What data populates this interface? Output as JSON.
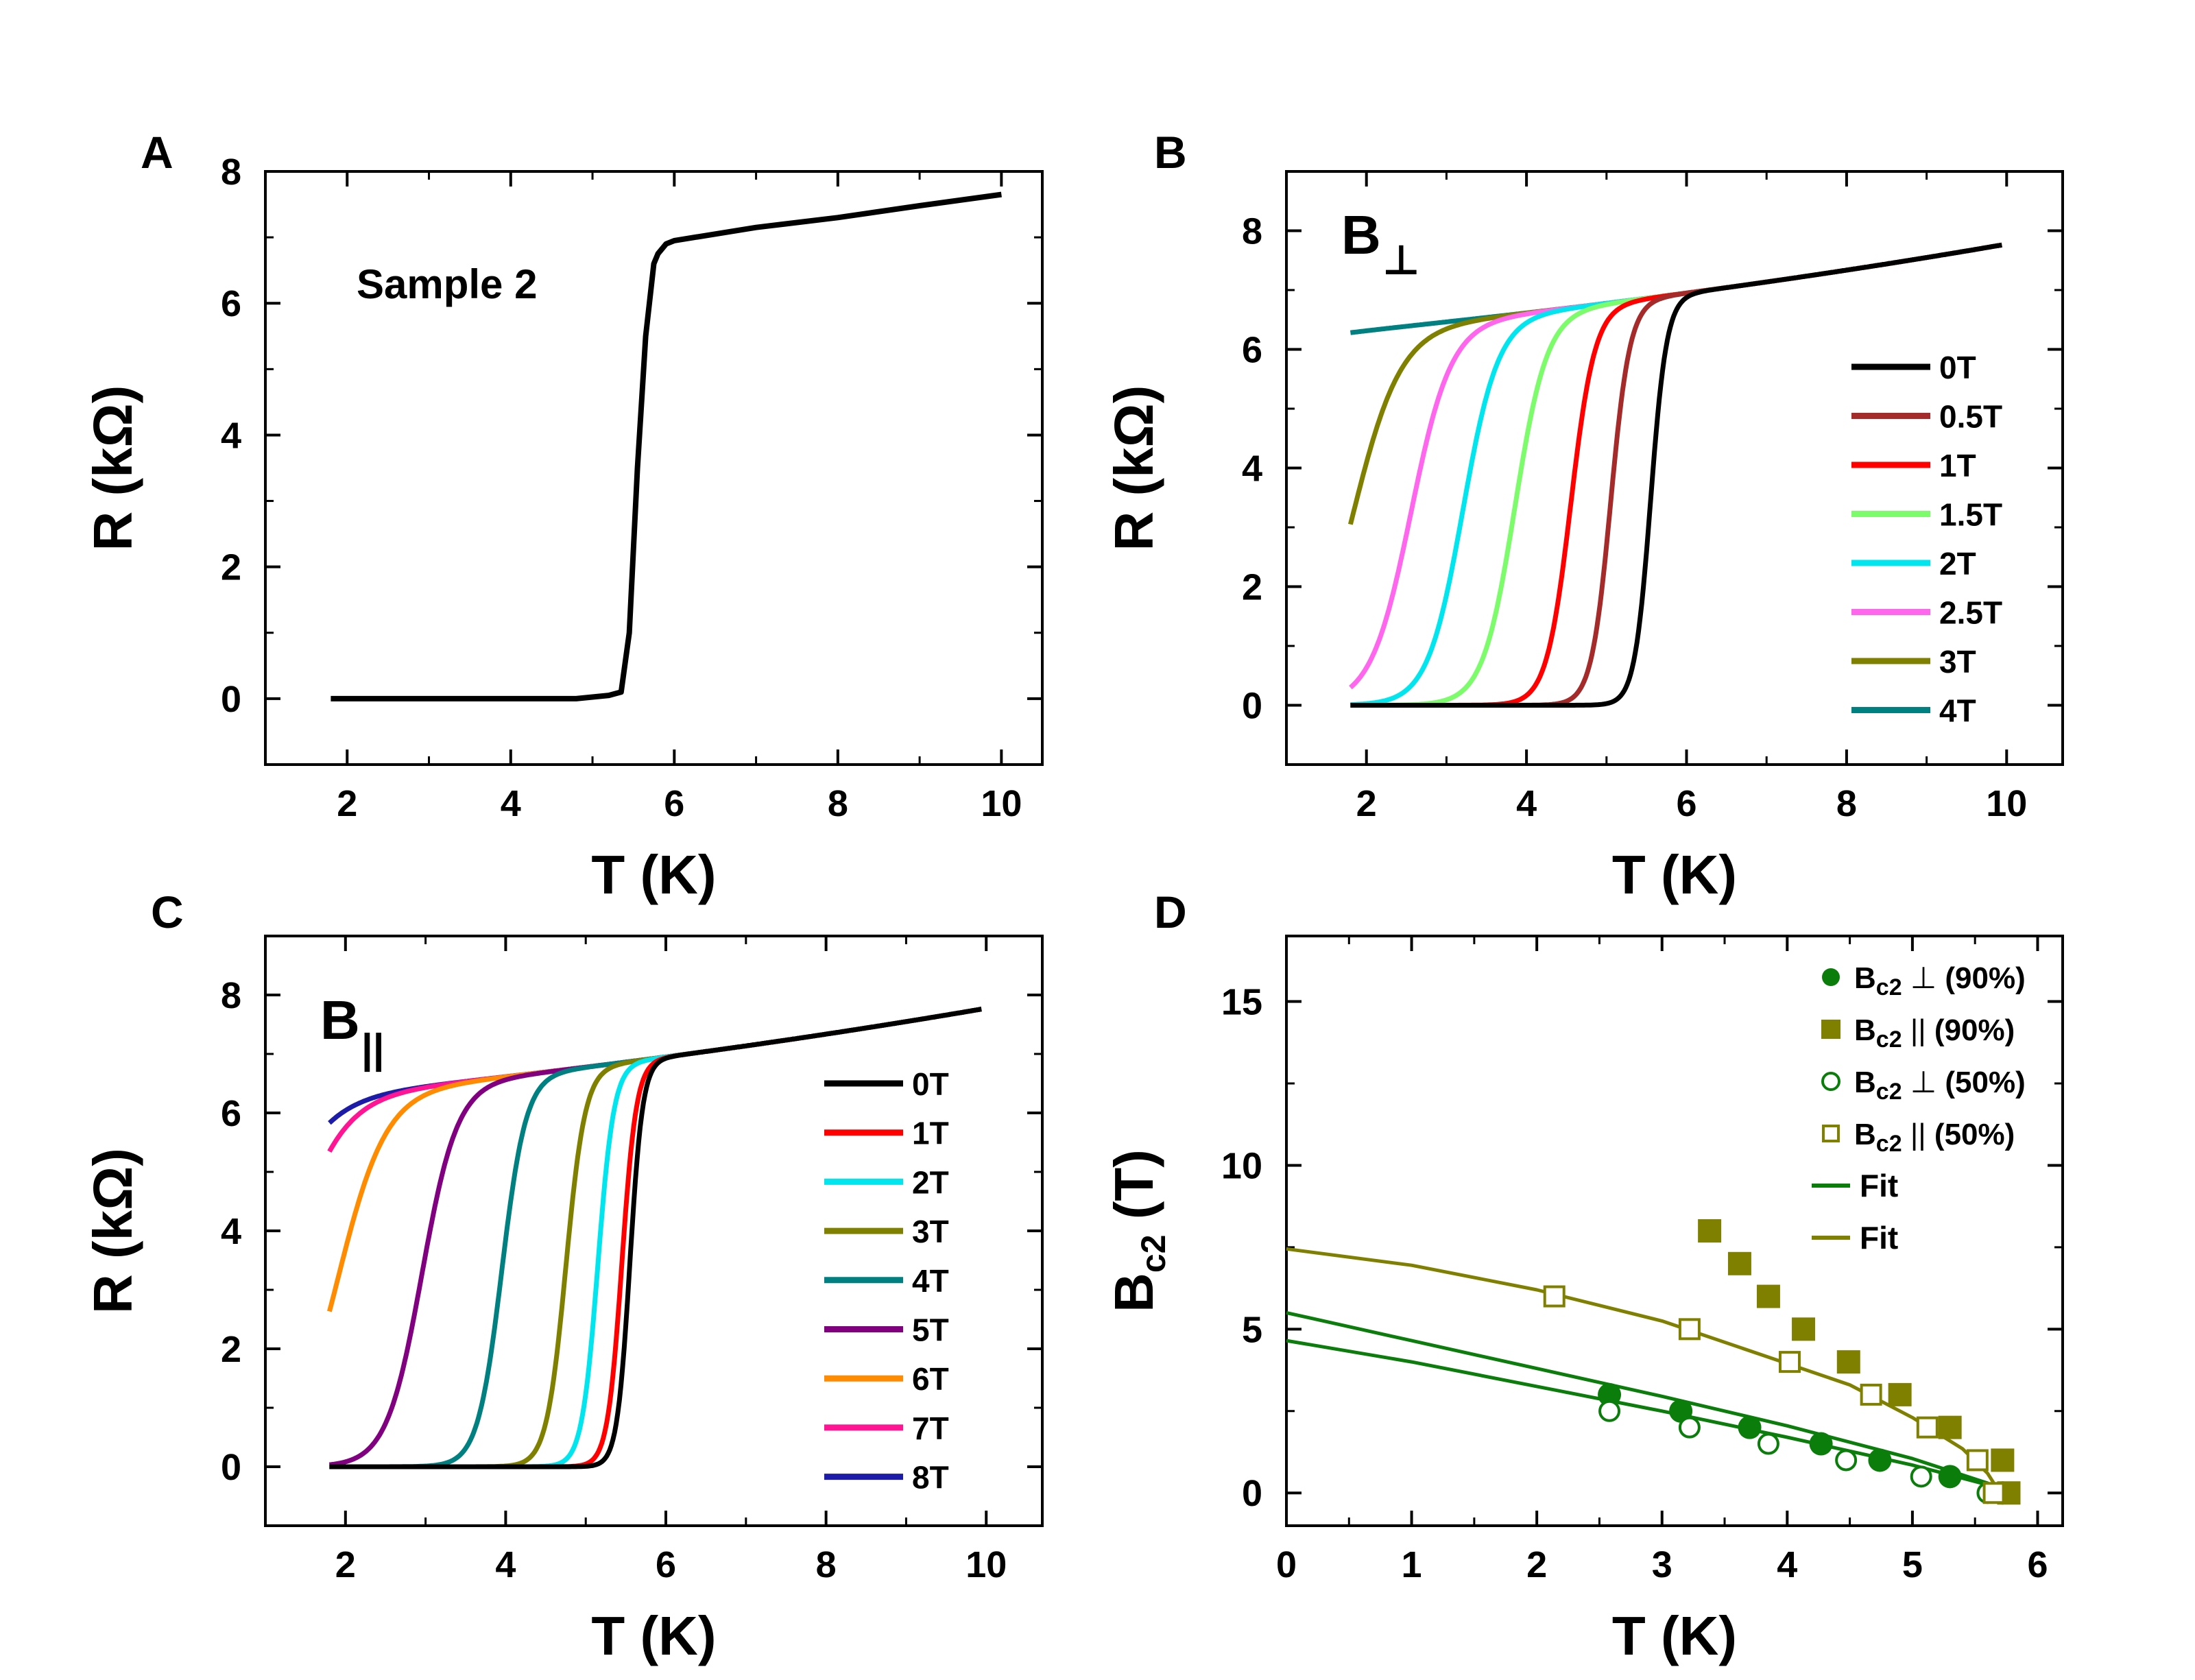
{
  "chart_data": [
    {
      "type": "line",
      "panel_label": "A",
      "annotation": "Sample 2",
      "xlabel": "T (K)",
      "ylabel": "R (kΩ)",
      "xlim": [
        1,
        10.5
      ],
      "ylim": [
        -1,
        8
      ],
      "xticks": [
        "2",
        "4",
        "6",
        "8",
        "10"
      ],
      "yticks": [
        "0",
        "2",
        "4",
        "6",
        "8"
      ],
      "series": [
        {
          "name": "Sample 2",
          "color": "#000000",
          "x": [
            1.8,
            3,
            4,
            4.8,
            5.2,
            5.35,
            5.45,
            5.55,
            5.65,
            5.75,
            5.8,
            5.9,
            6.0,
            7,
            8,
            9,
            10
          ],
          "y": [
            0,
            0,
            0,
            0,
            0.05,
            0.1,
            1.0,
            3.5,
            5.5,
            6.6,
            6.75,
            6.9,
            6.95,
            7.15,
            7.3,
            7.48,
            7.65
          ]
        }
      ]
    },
    {
      "type": "line",
      "panel_label": "B",
      "annotation": "B⊥",
      "xlabel": "T (K)",
      "ylabel": "R (kΩ)",
      "xlim": [
        1,
        10.7
      ],
      "ylim": [
        -1,
        9
      ],
      "xticks": [
        "2",
        "4",
        "6",
        "8",
        "10"
      ],
      "yticks": [
        "0",
        "2",
        "4",
        "6",
        "8"
      ],
      "series": [
        {
          "name": "0T",
          "color": "#000000",
          "tc": 5.55,
          "w": 0.1
        },
        {
          "name": "0.5T",
          "color": "#a52a2a",
          "tc": 5.05,
          "w": 0.12
        },
        {
          "name": "1T",
          "color": "#ff0000",
          "tc": 4.55,
          "w": 0.15
        },
        {
          "name": "1.5T",
          "color": "#7cfc6a",
          "tc": 3.85,
          "w": 0.2
        },
        {
          "name": "2T",
          "color": "#00e5ee",
          "tc": 3.2,
          "w": 0.22
        },
        {
          "name": "2.5T",
          "color": "#ff66ee",
          "tc": 2.55,
          "w": 0.25
        },
        {
          "name": "3T",
          "color": "#808000",
          "tc": 1.82,
          "w": 0.3
        },
        {
          "name": "4T",
          "color": "#008080",
          "tc": -2.0,
          "w": 0.7
        }
      ]
    },
    {
      "type": "line",
      "panel_label": "C",
      "annotation": "B||",
      "xlabel": "T (K)",
      "ylabel": "R (kΩ)",
      "xlim": [
        1,
        10.7
      ],
      "ylim": [
        -1,
        9
      ],
      "xticks": [
        "2",
        "4",
        "6",
        "8",
        "10"
      ],
      "yticks": [
        "0",
        "2",
        "4",
        "6",
        "8"
      ],
      "series": [
        {
          "name": "0T",
          "color": "#000000",
          "tc": 5.55,
          "w": 0.08
        },
        {
          "name": "1T",
          "color": "#ff0000",
          "tc": 5.45,
          "w": 0.09
        },
        {
          "name": "2T",
          "color": "#00e5ee",
          "tc": 5.15,
          "w": 0.1
        },
        {
          "name": "3T",
          "color": "#808000",
          "tc": 4.75,
          "w": 0.12
        },
        {
          "name": "4T",
          "color": "#008080",
          "tc": 3.95,
          "w": 0.15
        },
        {
          "name": "5T",
          "color": "#800080",
          "tc": 2.95,
          "w": 0.22
        },
        {
          "name": "6T",
          "color": "#ff8c00",
          "tc": 1.9,
          "w": 0.3
        },
        {
          "name": "7T",
          "color": "#ff1493",
          "tc": 1.2,
          "w": 0.35
        },
        {
          "name": "8T",
          "color": "#1c1ca8",
          "tc": 0.85,
          "w": 0.38
        }
      ]
    },
    {
      "type": "scatter",
      "panel_label": "D",
      "xlabel": "T (K)",
      "ylabel": "B",
      "ylabel_sub": "c2",
      "ylabel_suffix": " (T)",
      "xlim": [
        0,
        6.2
      ],
      "ylim": [
        -1,
        17
      ],
      "xticks": [
        "0",
        "1",
        "2",
        "3",
        "4",
        "5",
        "6"
      ],
      "yticks": [
        "0",
        "5",
        "10",
        "15"
      ],
      "legend_position": "top-right",
      "series": [
        {
          "name": "Bc2 ⊥ (90%)",
          "main": "B",
          "sub": "c2",
          "sym": "⊥",
          "pct": " (90%)",
          "marker": "filled-circle",
          "color": "#0a7d0a",
          "x": [
            2.58,
            3.15,
            3.7,
            4.27,
            4.74,
            5.3,
            5.72
          ],
          "y": [
            3,
            2.5,
            2,
            1.5,
            1,
            0.5,
            0
          ]
        },
        {
          "name": "Bc2 || (90%)",
          "main": "B",
          "sub": "c2",
          "sym": "||",
          "pct": " (90%)",
          "marker": "filled-square",
          "color": "#808000",
          "x": [
            3.38,
            3.62,
            3.85,
            4.13,
            4.49,
            4.9,
            5.3,
            5.72,
            5.77
          ],
          "y": [
            8,
            7,
            6,
            5,
            4,
            3,
            2,
            1,
            0
          ]
        },
        {
          "name": "Bc2 ⊥ (50%)",
          "main": "B",
          "sub": "c2",
          "sym": "⊥",
          "pct": " (50%)",
          "marker": "open-circle",
          "color": "#0a7d0a",
          "x": [
            2.58,
            3.22,
            3.85,
            4.47,
            5.07,
            5.6
          ],
          "y": [
            2.5,
            2,
            1.5,
            1,
            0.5,
            0
          ]
        },
        {
          "name": "Bc2 || (50%)",
          "main": "B",
          "sub": "c2",
          "sym": "||",
          "pct": " (50%)",
          "marker": "open-square",
          "color": "#808000",
          "x": [
            2.14,
            3.22,
            4.02,
            4.67,
            5.12,
            5.52,
            5.65
          ],
          "y": [
            6,
            5,
            4,
            3,
            2,
            1,
            0
          ]
        },
        {
          "name": "Fit",
          "marker": "line",
          "color": "#0a7d0a",
          "x": [
            0,
            1,
            2,
            3,
            4,
            5,
            5.6,
            5.75
          ],
          "y": [
            4.65,
            4.0,
            3.25,
            2.5,
            1.7,
            0.85,
            0.25,
            0
          ]
        },
        {
          "name": "Fit",
          "marker": "line",
          "color": "#0a7d0a",
          "legend": false,
          "x": [
            0,
            1,
            2,
            3,
            4,
            5,
            5.6,
            5.75
          ],
          "y": [
            5.5,
            4.65,
            3.8,
            2.95,
            2.05,
            1.05,
            0.3,
            0
          ]
        },
        {
          "name": "Fit",
          "marker": "line",
          "color": "#808000",
          "x": [
            0,
            1,
            2,
            3,
            4,
            4.5,
            5,
            5.4,
            5.6,
            5.7
          ],
          "y": [
            7.45,
            6.95,
            6.2,
            5.25,
            3.95,
            3.3,
            2.3,
            1.35,
            0.6,
            0
          ]
        }
      ]
    }
  ]
}
